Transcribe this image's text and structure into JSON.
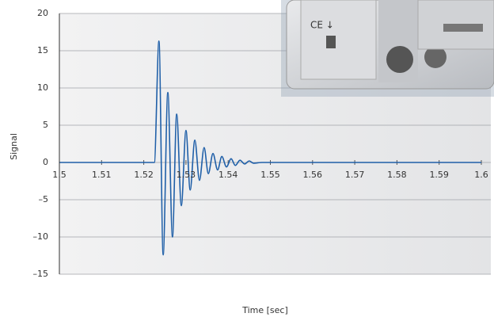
{
  "chart_data": {
    "type": "line",
    "x_label": "Time [sec]",
    "y_label": "Signal",
    "x": [
      1.5,
      1.5225,
      1.5236,
      1.5246,
      1.5257,
      1.5268,
      1.5278,
      1.5289,
      1.53,
      1.531,
      1.5321,
      1.5332,
      1.5343,
      1.5353,
      1.5364,
      1.5375,
      1.5385,
      1.5396,
      1.5407,
      1.5417,
      1.5428,
      1.5439,
      1.545,
      1.546,
      1.548,
      1.6
    ],
    "series": [
      {
        "color": "#1f5fa8",
        "values": [
          0,
          0,
          16.3,
          -12.4,
          9.4,
          -10.0,
          6.5,
          -5.8,
          4.3,
          -3.7,
          3.0,
          -2.4,
          2.0,
          -1.5,
          1.2,
          -1.0,
          0.8,
          -0.6,
          0.5,
          -0.4,
          0.3,
          -0.2,
          0.2,
          -0.1,
          0,
          0
        ]
      }
    ],
    "xlim": [
      1.5,
      1.6
    ],
    "xticks": [
      1.5,
      1.51,
      1.52,
      1.53,
      1.54,
      1.55,
      1.56,
      1.57,
      1.58,
      1.59,
      1.6
    ],
    "ylim": [
      -15,
      20
    ],
    "yticks": [
      {
        "value": -15,
        "label": "–15"
      },
      {
        "value": -10,
        "label": "–10"
      },
      {
        "value": -5,
        "label": "–5"
      },
      0,
      5,
      10,
      15,
      20
    ],
    "grid": true
  }
}
